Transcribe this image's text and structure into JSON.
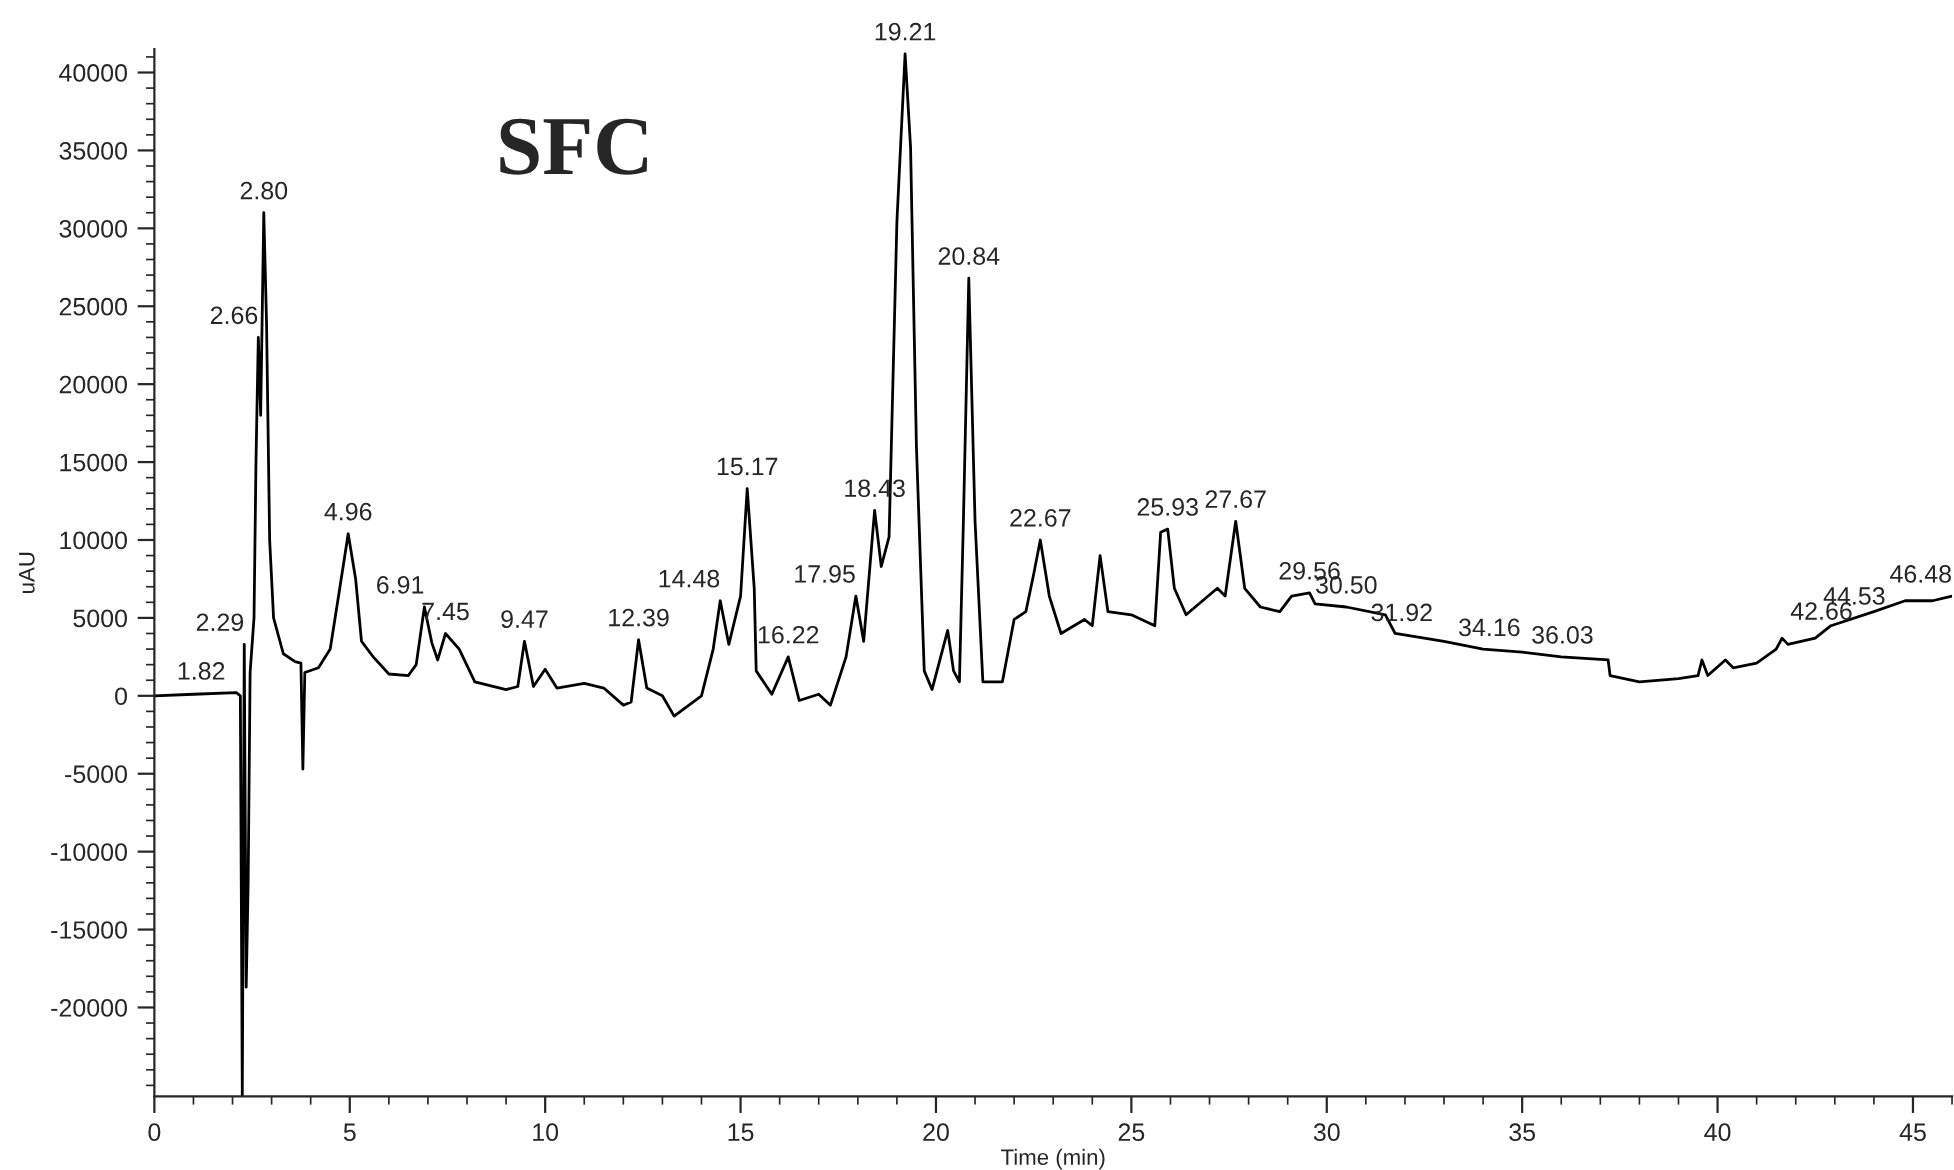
{
  "chart_data": {
    "type": "line",
    "title": "SFC",
    "xlabel": "Time (min)",
    "ylabel": "uAU",
    "xlim": [
      0,
      46
    ],
    "xticks": [
      0,
      5,
      10,
      15,
      20,
      25,
      30,
      35,
      40,
      45
    ],
    "ylim": [
      -25700,
      41500
    ],
    "yticks": [
      -20000,
      -15000,
      -10000,
      -5000,
      0,
      5000,
      10000,
      15000,
      20000,
      25000,
      30000,
      35000,
      40000
    ],
    "grid": false,
    "legend": false,
    "marker": "none",
    "line_style": "solid",
    "series": [
      {
        "color": "#000000",
        "x": [
          0,
          1.0,
          2.1,
          2.2,
          2.25,
          2.3,
          2.35,
          2.4,
          2.45,
          2.55,
          2.6,
          2.66,
          2.72,
          2.8,
          2.87,
          2.95,
          3.05,
          3.3,
          3.6,
          3.75,
          3.8,
          3.85,
          4.2,
          4.5,
          4.75,
          4.96,
          5.15,
          5.3,
          5.6,
          6.0,
          6.5,
          6.7,
          6.91,
          7.1,
          7.25,
          7.45,
          7.8,
          8.2,
          9.0,
          9.3,
          9.47,
          9.7,
          10.0,
          10.3,
          11.0,
          11.5,
          12.0,
          12.2,
          12.39,
          12.6,
          13.0,
          13.3,
          14.0,
          14.3,
          14.48,
          14.7,
          15.0,
          15.17,
          15.35,
          15.4,
          15.8,
          16.22,
          16.5,
          17.0,
          17.3,
          17.7,
          17.95,
          18.15,
          18.43,
          18.6,
          18.8,
          19.0,
          19.21,
          19.35,
          19.5,
          19.7,
          19.9,
          20.3,
          20.45,
          20.6,
          20.7,
          20.84,
          21.0,
          21.2,
          21.7,
          22.0,
          22.3,
          22.5,
          22.67,
          22.9,
          23.2,
          23.8,
          24.0,
          24.2,
          24.4,
          25.0,
          25.6,
          25.75,
          25.93,
          26.1,
          26.4,
          27.2,
          27.4,
          27.67,
          27.9,
          28.3,
          28.8,
          29.1,
          29.56,
          29.7,
          30.5,
          31.5,
          31.75,
          33.0,
          34.0,
          35.0,
          36.0,
          37.2,
          37.25,
          38.0,
          39.0,
          39.5,
          39.6,
          39.75,
          40.2,
          40.4,
          41.0,
          41.5,
          41.65,
          41.8,
          42.5,
          42.9,
          44.0,
          44.8,
          45.5,
          46.0
        ],
        "values": [
          0,
          100,
          200,
          0,
          -25700,
          3300,
          -18700,
          -12000,
          1500,
          5000,
          15000,
          23000,
          18000,
          31000,
          24000,
          10000,
          5000,
          2700,
          2200,
          2100,
          -4700,
          1500,
          1800,
          3000,
          7000,
          10400,
          7500,
          3500,
          2500,
          1400,
          1300,
          2000,
          5700,
          3400,
          2300,
          4000,
          3000,
          900,
          400,
          600,
          3500,
          600,
          1700,
          500,
          800,
          500,
          -600,
          -400,
          3600,
          500,
          0,
          -1300,
          0,
          3000,
          6100,
          3300,
          6400,
          13300,
          6900,
          1600,
          100,
          2500,
          -300,
          100,
          -600,
          2500,
          6400,
          3500,
          11900,
          8300,
          10200,
          30400,
          41200,
          35200,
          16000,
          1600,
          400,
          4200,
          1600,
          900,
          11000,
          26800,
          11200,
          900,
          900,
          4900,
          5400,
          7800,
          10000,
          6400,
          4000,
          4900,
          4500,
          9000,
          5400,
          5200,
          4500,
          10500,
          10700,
          6900,
          5200,
          6900,
          6400,
          11200,
          6900,
          5700,
          5400,
          6400,
          6600,
          5900,
          5700,
          5200,
          4000,
          3500,
          3000,
          2800,
          2500,
          2300,
          1300,
          900,
          1100,
          1300,
          2300,
          1300,
          2300,
          1800,
          2100,
          3000,
          3700,
          3300,
          3700,
          4500,
          5400,
          6100,
          6100,
          6400
        ]
      }
    ],
    "annotations": [
      {
        "text": "1.82",
        "x": 1.82,
        "y": 175
      },
      {
        "text": "2.29",
        "x": 2.3,
        "y": 3300
      },
      {
        "text": "2.66",
        "x": 2.66,
        "y": 23000
      },
      {
        "text": "2.80",
        "x": 2.8,
        "y": 31000
      },
      {
        "text": "4.96",
        "x": 4.96,
        "y": 10400
      },
      {
        "text": "6.91",
        "x": 6.91,
        "y": 5700
      },
      {
        "text": "7.45",
        "x": 7.45,
        "y": 4000
      },
      {
        "text": "9.47",
        "x": 9.47,
        "y": 3500
      },
      {
        "text": "12.39",
        "x": 12.39,
        "y": 3600
      },
      {
        "text": "14.48",
        "x": 14.48,
        "y": 6100
      },
      {
        "text": "15.17",
        "x": 15.17,
        "y": 13300
      },
      {
        "text": "16.22",
        "x": 16.22,
        "y": 2500
      },
      {
        "text": "17.95",
        "x": 17.95,
        "y": 6400
      },
      {
        "text": "18.43",
        "x": 18.43,
        "y": 11900
      },
      {
        "text": "19.21",
        "x": 19.21,
        "y": 41200
      },
      {
        "text": "20.84",
        "x": 20.84,
        "y": 26800
      },
      {
        "text": "22.67",
        "x": 22.67,
        "y": 10000
      },
      {
        "text": "25.93",
        "x": 25.93,
        "y": 10700
      },
      {
        "text": "27.67",
        "x": 27.67,
        "y": 11200
      },
      {
        "text": "29.56",
        "x": 29.56,
        "y": 6600
      },
      {
        "text": "30.50",
        "x": 30.5,
        "y": 5700
      },
      {
        "text": "31.92",
        "x": 31.92,
        "y": 3930
      },
      {
        "text": "34.16",
        "x": 34.16,
        "y": 2970
      },
      {
        "text": "36.03",
        "x": 36.03,
        "y": 2490
      },
      {
        "text": "42.66",
        "x": 42.66,
        "y": 4020
      },
      {
        "text": "44.53",
        "x": 43.5,
        "y": 4990
      },
      {
        "text": "46.48",
        "x": 46.0,
        "y": 6400
      }
    ]
  }
}
